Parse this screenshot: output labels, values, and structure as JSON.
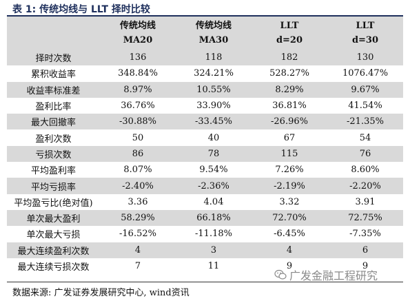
{
  "title": "表 1:  传统均线与 LLT 择时比较",
  "columns": [
    {
      "line1": "",
      "line2": ""
    },
    {
      "line1": "传统均线",
      "line2": "MA20"
    },
    {
      "line1": "传统均线",
      "line2": "MA30"
    },
    {
      "line1": "LLT",
      "line2": "d=20"
    },
    {
      "line1": "LLT",
      "line2": "d=30"
    }
  ],
  "rows": [
    [
      "择时次数",
      "136",
      "118",
      "182",
      "130"
    ],
    [
      "累积收益率",
      "348.84%",
      "324.21%",
      "528.27%",
      "1076.47%"
    ],
    [
      "收益率标准差",
      "8.97%",
      "10.55%",
      "8.29%",
      "9.67%"
    ],
    [
      "盈利比率",
      "36.76%",
      "33.90%",
      "36.81%",
      "41.54%"
    ],
    [
      "最大回撤率",
      "-30.88%",
      "-33.45%",
      "-26.96%",
      "-21.35%"
    ],
    [
      "盈利次数",
      "50",
      "40",
      "67",
      "54"
    ],
    [
      "亏损次数",
      "86",
      "78",
      "115",
      "76"
    ],
    [
      "平均盈利率",
      "8.07%",
      "9.54%",
      "7.26%",
      "8.60%"
    ],
    [
      "平均亏损率",
      "-2.40%",
      "-2.36%",
      "-2.19%",
      "-2.20%"
    ],
    [
      "平均盈亏比(绝对值)",
      "3.36",
      "4.04",
      "3.32",
      "3.91"
    ],
    [
      "单次最大盈利",
      "58.29%",
      "66.18%",
      "72.70%",
      "72.75%"
    ],
    [
      "单次最大亏损",
      "-16.52%",
      "-11.18%",
      "-6.45%",
      "-7.35%"
    ],
    [
      "最大连续盈利次数",
      "4",
      "3",
      "4",
      "6"
    ],
    [
      "最大连续亏损次数",
      "7",
      "11",
      "9",
      "9"
    ]
  ],
  "source": "数据来源: 广发证券发展研究中心, wind资讯",
  "watermark": {
    "text": "广发金融工程研究",
    "icon": "wechat-icon"
  }
}
